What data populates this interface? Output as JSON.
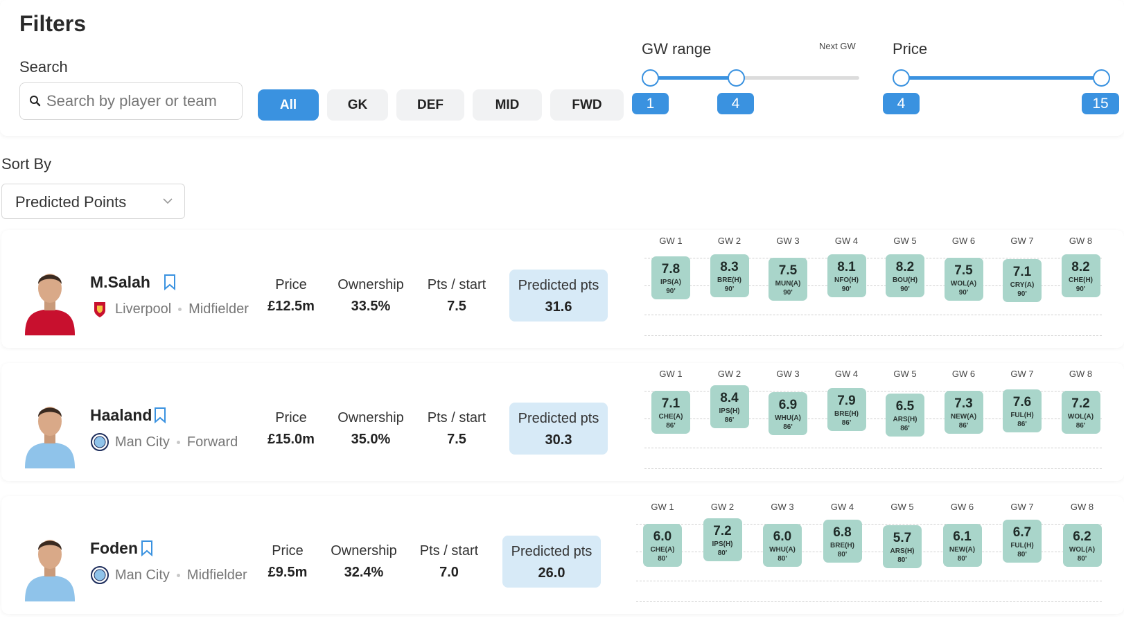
{
  "filters": {
    "title": "Filters",
    "search_label": "Search",
    "search_placeholder": "Search by player or team",
    "positions": [
      {
        "label": "All",
        "active": true
      },
      {
        "label": "GK",
        "active": false
      },
      {
        "label": "DEF",
        "active": false
      },
      {
        "label": "MID",
        "active": false
      },
      {
        "label": "FWD",
        "active": false
      }
    ],
    "gw_range": {
      "label": "GW range",
      "note": "Next GW",
      "min": "1",
      "max": "4"
    },
    "price": {
      "label": "Price",
      "min": "4",
      "max": "15"
    }
  },
  "sort": {
    "label": "Sort By",
    "value": "Predicted Points"
  },
  "stat_labels": {
    "price": "Price",
    "ownership": "Ownership",
    "pts_start": "Pts / start",
    "predicted": "Predicted pts"
  },
  "players": [
    {
      "name": "M.Salah",
      "club": "Liverpool",
      "position": "Midfielder",
      "price": "£12.5m",
      "ownership": "33.5%",
      "pts_start": "7.5",
      "predicted": "31.6",
      "shirt_color": "#c8102e",
      "gws": [
        {
          "head": "GW 1",
          "pts": "7.8",
          "opp": "IPS(A)",
          "min": "90'"
        },
        {
          "head": "GW 2",
          "pts": "8.3",
          "opp": "BRE(H)",
          "min": "90'"
        },
        {
          "head": "GW 3",
          "pts": "7.5",
          "opp": "MUN(A)",
          "min": "90'"
        },
        {
          "head": "GW 4",
          "pts": "8.1",
          "opp": "NFO(H)",
          "min": "90'"
        },
        {
          "head": "GW 5",
          "pts": "8.2",
          "opp": "BOU(H)",
          "min": "90'"
        },
        {
          "head": "GW 6",
          "pts": "7.5",
          "opp": "WOL(A)",
          "min": "90'"
        },
        {
          "head": "GW 7",
          "pts": "7.1",
          "opp": "CRY(A)",
          "min": "90'"
        },
        {
          "head": "GW 8",
          "pts": "8.2",
          "opp": "CHE(H)",
          "min": "90'"
        }
      ]
    },
    {
      "name": "Haaland",
      "club": "Man City",
      "position": "Forward",
      "price": "£15.0m",
      "ownership": "35.0%",
      "pts_start": "7.5",
      "predicted": "30.3",
      "shirt_color": "#8fc3ea",
      "gws": [
        {
          "head": "GW 1",
          "pts": "7.1",
          "opp": "CHE(A)",
          "min": "86'"
        },
        {
          "head": "GW 2",
          "pts": "8.4",
          "opp": "IPS(H)",
          "min": "86'"
        },
        {
          "head": "GW 3",
          "pts": "6.9",
          "opp": "WHU(A)",
          "min": "86'"
        },
        {
          "head": "GW 4",
          "pts": "7.9",
          "opp": "BRE(H)",
          "min": "86'"
        },
        {
          "head": "GW 5",
          "pts": "6.5",
          "opp": "ARS(H)",
          "min": "86'"
        },
        {
          "head": "GW 6",
          "pts": "7.3",
          "opp": "NEW(A)",
          "min": "86'"
        },
        {
          "head": "GW 7",
          "pts": "7.6",
          "opp": "FUL(H)",
          "min": "86'"
        },
        {
          "head": "GW 8",
          "pts": "7.2",
          "opp": "WOL(A)",
          "min": "86'"
        }
      ]
    },
    {
      "name": "Foden",
      "club": "Man City",
      "position": "Midfielder",
      "price": "£9.5m",
      "ownership": "32.4%",
      "pts_start": "7.0",
      "predicted": "26.0",
      "shirt_color": "#8fc3ea",
      "gws": [
        {
          "head": "GW 1",
          "pts": "6.0",
          "opp": "CHE(A)",
          "min": "80'"
        },
        {
          "head": "GW 2",
          "pts": "7.2",
          "opp": "IPS(H)",
          "min": "80'"
        },
        {
          "head": "GW 3",
          "pts": "6.0",
          "opp": "WHU(A)",
          "min": "80'"
        },
        {
          "head": "GW 4",
          "pts": "6.8",
          "opp": "BRE(H)",
          "min": "80'"
        },
        {
          "head": "GW 5",
          "pts": "5.7",
          "opp": "ARS(H)",
          "min": "80'"
        },
        {
          "head": "GW 6",
          "pts": "6.1",
          "opp": "NEW(A)",
          "min": "80'"
        },
        {
          "head": "GW 7",
          "pts": "6.7",
          "opp": "FUL(H)",
          "min": "80'"
        },
        {
          "head": "GW 8",
          "pts": "6.2",
          "opp": "WOL(A)",
          "min": "80'"
        }
      ]
    }
  ],
  "colors": {
    "accent": "#3a92e0",
    "predicted_bg": "#d7eaf7",
    "gw_box": "#a9d5ca"
  }
}
